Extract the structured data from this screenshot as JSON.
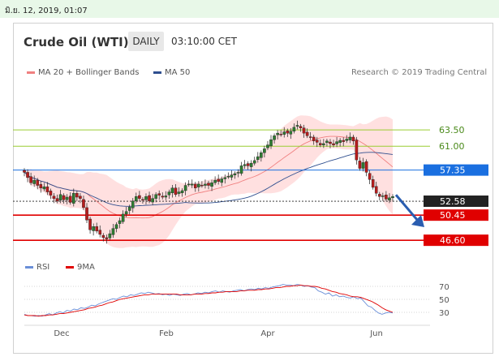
{
  "timestamp": "มิ.ย. 12, 2019, 01:07",
  "header": {
    "title": "Crude Oil (WTI)",
    "period": "DAILY",
    "time": "03:10:00 CET"
  },
  "legend": {
    "ma20": {
      "label": "MA 20 + Bollinger Bands",
      "color": "#f08080"
    },
    "ma50": {
      "label": "MA 50",
      "color": "#2f4f8f"
    }
  },
  "credit": "Research © 2019 Trading Central",
  "rsi_legend": {
    "rsi": {
      "label": "RSI",
      "color": "#6a8fd8"
    },
    "ma9": {
      "label": "9MA",
      "color": "#e00000"
    }
  },
  "chart_data": [
    {
      "type": "candlestick",
      "ylim": [
        45.5,
        66.0
      ],
      "x_ticks": [
        "Dec",
        "Feb",
        "Apr",
        "Jun"
      ],
      "closes": [
        57.0,
        56.2,
        55.4,
        55.8,
        55.0,
        54.6,
        54.8,
        54.0,
        53.5,
        53.0,
        52.6,
        53.6,
        52.8,
        53.2,
        52.4,
        53.8,
        53.2,
        53.0,
        51.6,
        49.7,
        48.2,
        48.7,
        48.0,
        47.5,
        47.0,
        46.8,
        47.6,
        48.4,
        49.0,
        49.6,
        50.6,
        51.0,
        51.7,
        52.6,
        53.3,
        53.0,
        52.8,
        53.3,
        52.6,
        53.0,
        53.6,
        53.5,
        53.2,
        53.4,
        54.0,
        54.6,
        53.6,
        54.0,
        54.2,
        55.0,
        55.2,
        55.2,
        54.6,
        55.2,
        55.0,
        55.2,
        55.0,
        55.4,
        55.8,
        55.6,
        56.0,
        56.2,
        56.4,
        56.6,
        56.8,
        57.0,
        58.0,
        58.2,
        58.0,
        58.4,
        58.8,
        59.4,
        60.0,
        60.6,
        61.2,
        62.0,
        62.6,
        63.0,
        62.8,
        63.2,
        63.0,
        63.3,
        63.9,
        64.2,
        63.8,
        63.0,
        62.6,
        62.4,
        61.8,
        61.6,
        61.2,
        61.4,
        61.8,
        61.4,
        61.2,
        61.7,
        61.9,
        61.7,
        62.1,
        62.4,
        61.8,
        58.9,
        57.6,
        58.5,
        57.0,
        55.9,
        54.7,
        53.8,
        53.3,
        53.4,
        52.9,
        53.1,
        53.3
      ],
      "highlighted_levels": [
        {
          "value": 63.5,
          "label": "63.50",
          "color": "#9acd32"
        },
        {
          "value": 61.0,
          "label": "61.00",
          "color": "#9acd32"
        },
        {
          "value": 57.35,
          "label": "57.35",
          "color": "#1a6fe0"
        },
        {
          "value": 52.58,
          "label": "52.58",
          "color": "#222222"
        },
        {
          "value": 50.45,
          "label": "50.45",
          "color": "#e00000"
        },
        {
          "value": 46.6,
          "label": "46.60",
          "color": "#e00000"
        }
      ]
    },
    {
      "type": "line",
      "name": "RSI",
      "ylim": [
        15,
        80
      ],
      "y_ticks": [
        70,
        50,
        30
      ],
      "rsi": [
        27,
        25,
        25,
        24,
        25,
        24,
        26,
        28,
        26,
        29,
        31,
        29,
        33,
        32,
        35,
        34,
        37,
        36,
        38,
        41,
        40,
        43,
        45,
        47,
        49,
        51,
        50,
        53,
        55,
        54,
        57,
        56,
        58,
        60,
        59,
        61,
        60,
        58,
        59,
        57,
        58,
        56,
        58,
        57,
        56,
        58,
        59,
        57,
        58,
        60,
        59,
        61,
        60,
        62,
        63,
        61,
        63,
        62,
        61,
        63,
        64,
        65,
        63,
        65,
        66,
        65,
        67,
        66,
        68,
        67,
        69,
        70,
        71,
        73,
        72,
        72,
        71,
        73,
        72,
        70,
        71,
        69,
        68,
        63,
        61,
        58,
        60,
        55,
        57,
        54,
        55,
        53,
        52,
        54,
        51,
        52,
        46,
        40,
        38,
        33,
        29,
        27,
        29,
        30,
        29
      ],
      "ma9": [
        26,
        25,
        25,
        25,
        24,
        25,
        25,
        26,
        26,
        27,
        28,
        28,
        29,
        30,
        31,
        32,
        33,
        34,
        36,
        37,
        38,
        40,
        41,
        43,
        45,
        46,
        48,
        50,
        51,
        52,
        53,
        54,
        55,
        56,
        57,
        57,
        58,
        58,
        58,
        58,
        58,
        58,
        58,
        58,
        57,
        57,
        57,
        57,
        58,
        58,
        58,
        59,
        59,
        60,
        60,
        61,
        61,
        62,
        62,
        62,
        62,
        63,
        63,
        64,
        64,
        64,
        65,
        65,
        66,
        66,
        67,
        68,
        68,
        69,
        70,
        70,
        71,
        71,
        72,
        71,
        71,
        70,
        70,
        69,
        67,
        66,
        64,
        62,
        61,
        59,
        58,
        57,
        55,
        54,
        54,
        53,
        51,
        49,
        47,
        44,
        41,
        37,
        34,
        32,
        30
      ]
    }
  ]
}
